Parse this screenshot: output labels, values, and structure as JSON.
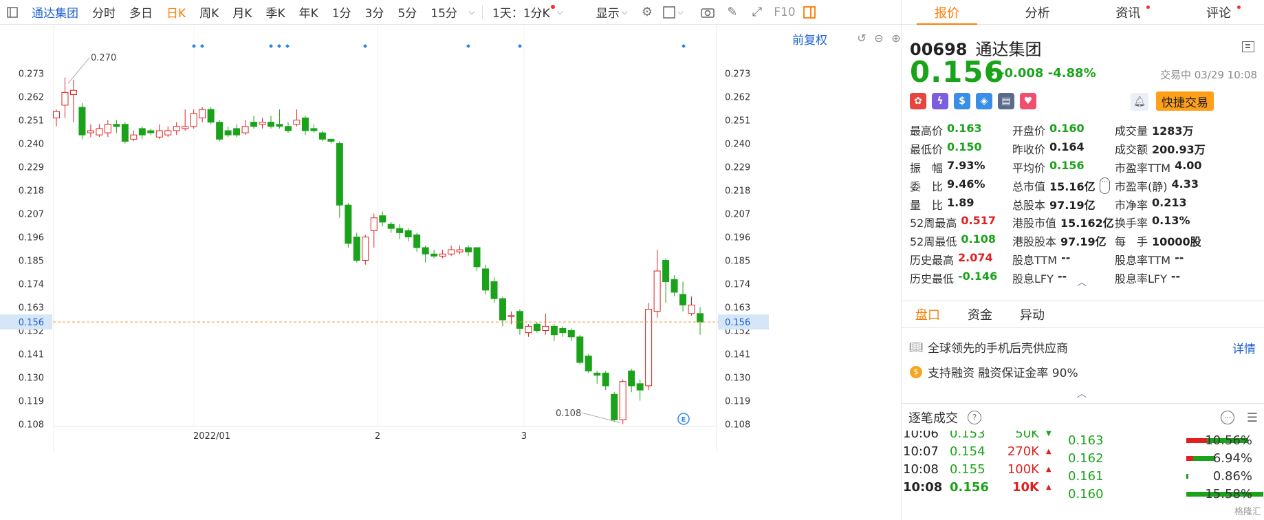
{
  "toolbar": {
    "stock_name": "通达集团",
    "periods": [
      "分时",
      "多日",
      "日K",
      "周K",
      "月K",
      "季K",
      "年K",
      "1分",
      "3分",
      "5分",
      "15分"
    ],
    "active_period": "日K",
    "interval_label": "1天：1分K",
    "display_label": "显示"
  },
  "chart": {
    "adjust_label": "前复权",
    "y_ticks": [
      "0.273",
      "0.262",
      "0.251",
      "0.240",
      "0.229",
      "0.218",
      "0.207",
      "0.196",
      "0.185",
      "0.174",
      "0.163",
      "0.152",
      "0.141",
      "0.130",
      "0.119",
      "0.108"
    ],
    "current_price_tag": "0.156",
    "x_labels": [
      "2022/01",
      "2",
      "3"
    ],
    "max_annotation": "0.270",
    "min_annotation": "0.108",
    "colors": {
      "up": "#e02020",
      "down": "#1aa31a",
      "price_line": "#ff8c2b",
      "tag_bg": "#d6e6f7"
    }
  },
  "chart_data": {
    "type": "candlestick",
    "x_labels": [
      "2022/01",
      "2",
      "3"
    ],
    "ylim": [
      0.103,
      0.279
    ],
    "annotations": {
      "max": 0.27,
      "min": 0.108,
      "last": 0.156
    },
    "candles": [
      [
        0.252,
        0.255,
        0.248,
        0.256
      ],
      [
        0.258,
        0.264,
        0.252,
        0.271
      ],
      [
        0.263,
        0.265,
        0.25,
        0.27
      ],
      [
        0.257,
        0.244,
        0.242,
        0.259
      ],
      [
        0.245,
        0.246,
        0.243,
        0.249
      ],
      [
        0.244,
        0.247,
        0.243,
        0.249
      ],
      [
        0.245,
        0.249,
        0.243,
        0.251
      ],
      [
        0.249,
        0.248,
        0.245,
        0.251
      ],
      [
        0.249,
        0.241,
        0.24,
        0.25
      ],
      [
        0.242,
        0.244,
        0.241,
        0.246
      ],
      [
        0.247,
        0.244,
        0.242,
        0.248
      ],
      [
        0.246,
        0.245,
        0.244,
        0.247
      ],
      [
        0.243,
        0.246,
        0.242,
        0.249
      ],
      [
        0.244,
        0.246,
        0.243,
        0.248
      ],
      [
        0.246,
        0.248,
        0.244,
        0.25
      ],
      [
        0.247,
        0.248,
        0.246,
        0.256
      ],
      [
        0.248,
        0.254,
        0.247,
        0.256
      ],
      [
        0.252,
        0.256,
        0.25,
        0.257
      ],
      [
        0.256,
        0.25,
        0.249,
        0.257
      ],
      [
        0.25,
        0.242,
        0.241,
        0.251
      ],
      [
        0.246,
        0.244,
        0.243,
        0.248
      ],
      [
        0.247,
        0.244,
        0.243,
        0.249
      ],
      [
        0.245,
        0.248,
        0.244,
        0.251
      ],
      [
        0.25,
        0.248,
        0.247,
        0.253
      ],
      [
        0.249,
        0.25,
        0.247,
        0.252
      ],
      [
        0.25,
        0.248,
        0.247,
        0.253
      ],
      [
        0.249,
        0.248,
        0.247,
        0.256
      ],
      [
        0.248,
        0.246,
        0.245,
        0.25
      ],
      [
        0.249,
        0.251,
        0.248,
        0.256
      ],
      [
        0.252,
        0.246,
        0.244,
        0.253
      ],
      [
        0.247,
        0.246,
        0.245,
        0.249
      ],
      [
        0.245,
        0.242,
        0.241,
        0.246
      ],
      [
        0.242,
        0.241,
        0.24,
        0.242
      ],
      [
        0.24,
        0.211,
        0.205,
        0.241
      ],
      [
        0.211,
        0.193,
        0.191,
        0.212
      ],
      [
        0.196,
        0.185,
        0.184,
        0.198
      ],
      [
        0.185,
        0.196,
        0.183,
        0.197
      ],
      [
        0.199,
        0.205,
        0.191,
        0.207
      ],
      [
        0.206,
        0.203,
        0.201,
        0.208
      ],
      [
        0.202,
        0.2,
        0.198,
        0.203
      ],
      [
        0.2,
        0.198,
        0.195,
        0.202
      ],
      [
        0.199,
        0.196,
        0.194,
        0.2
      ],
      [
        0.197,
        0.191,
        0.189,
        0.198
      ],
      [
        0.191,
        0.188,
        0.184,
        0.192
      ],
      [
        0.188,
        0.187,
        0.186,
        0.19
      ],
      [
        0.187,
        0.188,
        0.186,
        0.19
      ],
      [
        0.188,
        0.19,
        0.187,
        0.192
      ],
      [
        0.189,
        0.19,
        0.188,
        0.192
      ],
      [
        0.191,
        0.189,
        0.187,
        0.192
      ],
      [
        0.191,
        0.182,
        0.18,
        0.191
      ],
      [
        0.181,
        0.171,
        0.169,
        0.183
      ],
      [
        0.175,
        0.167,
        0.165,
        0.177
      ],
      [
        0.167,
        0.157,
        0.154,
        0.168
      ],
      [
        0.159,
        0.159,
        0.155,
        0.161
      ],
      [
        0.161,
        0.153,
        0.15,
        0.162
      ],
      [
        0.151,
        0.154,
        0.149,
        0.155
      ],
      [
        0.155,
        0.152,
        0.151,
        0.156
      ],
      [
        0.152,
        0.154,
        0.15,
        0.16
      ],
      [
        0.154,
        0.15,
        0.147,
        0.155
      ],
      [
        0.153,
        0.151,
        0.149,
        0.154
      ],
      [
        0.152,
        0.149,
        0.147,
        0.153
      ],
      [
        0.149,
        0.137,
        0.136,
        0.15
      ],
      [
        0.14,
        0.133,
        0.132,
        0.141
      ],
      [
        0.132,
        0.131,
        0.127,
        0.133
      ],
      [
        0.132,
        0.126,
        0.124,
        0.133
      ],
      [
        0.122,
        0.11,
        0.109,
        0.123
      ],
      [
        0.11,
        0.128,
        0.108,
        0.129
      ],
      [
        0.133,
        0.126,
        0.123,
        0.134
      ],
      [
        0.127,
        0.124,
        0.119,
        0.129
      ],
      [
        0.126,
        0.162,
        0.124,
        0.165
      ],
      [
        0.161,
        0.18,
        0.158,
        0.19
      ],
      [
        0.185,
        0.175,
        0.165,
        0.186
      ],
      [
        0.176,
        0.17,
        0.168,
        0.178
      ],
      [
        0.169,
        0.164,
        0.161,
        0.175
      ],
      [
        0.16,
        0.164,
        0.159,
        0.168
      ],
      [
        0.16,
        0.156,
        0.15,
        0.163
      ]
    ]
  },
  "panel": {
    "tabs": [
      "报价",
      "分析",
      "资讯",
      "评论"
    ],
    "code": "00698",
    "name": "通达集团",
    "price": "0.156",
    "change": "-0.008",
    "change_pct": "-4.88%",
    "status": "交易中 03/29 10:08",
    "quick_trade": "快捷交易",
    "stats": [
      [
        [
          "最高价",
          "0.163",
          "g"
        ],
        [
          "开盘价",
          "0.160",
          "g"
        ],
        [
          "成交量",
          "1283万",
          "k"
        ]
      ],
      [
        [
          "最低价",
          "0.150",
          "g"
        ],
        [
          "昨收价",
          "0.164",
          "k"
        ],
        [
          "成交额",
          "200.93万",
          "k"
        ]
      ],
      [
        [
          "振　幅",
          "7.93%",
          "k"
        ],
        [
          "平均价",
          "0.156",
          "g"
        ],
        [
          "市盈率TTM",
          "4.00",
          "k"
        ]
      ],
      [
        [
          "委　比",
          "9.46%",
          "k"
        ],
        [
          "总市值",
          "15.16亿",
          "k"
        ],
        [
          "市盈率(静)",
          "4.33",
          "k"
        ]
      ],
      [
        [
          "量　比",
          "1.89",
          "k"
        ],
        [
          "总股本",
          "97.19亿",
          "k"
        ],
        [
          "市净率",
          "0.213",
          "k"
        ]
      ],
      [
        [
          "52周最高",
          "0.517",
          "r"
        ],
        [
          "港股市值",
          "15.162亿",
          "k"
        ],
        [
          "换手率",
          "0.13%",
          "k"
        ]
      ],
      [
        [
          "52周最低",
          "0.108",
          "g"
        ],
        [
          "港股股本",
          "97.19亿",
          "k"
        ],
        [
          "每　手",
          "10000股",
          "k"
        ]
      ],
      [
        [
          "历史最高",
          "2.074",
          "r"
        ],
        [
          "股息TTM",
          "--",
          "k"
        ],
        [
          "股息率TTM",
          "--",
          "k"
        ]
      ],
      [
        [
          "历史最低",
          "-0.146",
          "g"
        ],
        [
          "股息LFY",
          "--",
          "k"
        ],
        [
          "股息率LFY",
          "--",
          "k"
        ]
      ]
    ],
    "subtabs": [
      "盘口",
      "资金",
      "异动"
    ],
    "info1": "全球领先的手机后壳供应商",
    "info2": "支持融资  融资保证金率 90%",
    "detail_link": "详情",
    "trades_title": "逐笔成交",
    "trades": [
      {
        "t": "10:06",
        "p": "0.153",
        "v": "50K",
        "dir": "dn"
      },
      {
        "t": "10:07",
        "p": "0.154",
        "v": "270K",
        "dir": "up"
      },
      {
        "t": "10:08",
        "p": "0.155",
        "v": "100K",
        "dir": "up"
      },
      {
        "t": "10:08",
        "p": "0.156",
        "v": "10K",
        "dir": "up"
      }
    ],
    "price_dist": [
      {
        "p": "0.163",
        "pct": "10.56%"
      },
      {
        "p": "0.162",
        "pct": "6.94%"
      },
      {
        "p": "0.161",
        "pct": "0.86%"
      },
      {
        "p": "0.160",
        "pct": "15.58%"
      }
    ],
    "watermark": "格隆汇"
  }
}
